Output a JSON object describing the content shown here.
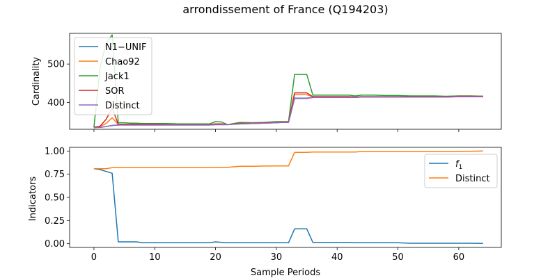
{
  "chart_data": {
    "title": "arrondissement of France (Q194203)",
    "xlabel": "Sample Periods",
    "x_ticks": [
      0,
      10,
      20,
      30,
      40,
      50,
      60
    ],
    "xlim": [
      -4,
      67
    ],
    "top": {
      "type": "line",
      "ylabel": "Cardinality",
      "ylim": [
        330,
        580
      ],
      "y_ticks": [
        400,
        500
      ],
      "legend_position": "upper-left",
      "series": [
        {
          "name": "N1−UNIF",
          "color": "#1f77b4",
          "x": [
            0,
            1,
            2,
            3,
            4,
            5,
            6,
            7,
            8,
            9,
            10,
            12,
            14,
            16,
            18,
            19,
            20,
            21,
            22,
            23,
            24,
            26,
            28,
            30,
            31,
            32,
            33,
            34,
            35,
            36,
            38,
            40,
            42,
            43,
            44,
            46,
            48,
            50,
            52,
            54,
            56,
            58,
            60,
            62,
            64
          ],
          "values": [
            335,
            335,
            337,
            340,
            341,
            341,
            341,
            341,
            341,
            341,
            341,
            341,
            341,
            341,
            341,
            341,
            342,
            342,
            342,
            343,
            344,
            345,
            346,
            347,
            348,
            348,
            411,
            411,
            411,
            413,
            413,
            413,
            413,
            413,
            414,
            414,
            414,
            414,
            414,
            414,
            414,
            414,
            415,
            415,
            415
          ]
        },
        {
          "name": "Chao92",
          "color": "#ff7f0e",
          "x": [
            0,
            1,
            2,
            3,
            4,
            5,
            6,
            7,
            8,
            9,
            10,
            12,
            14,
            16,
            18,
            19,
            20,
            21,
            22,
            23,
            24,
            26,
            28,
            30,
            31,
            32,
            33,
            34,
            35,
            36,
            38,
            40,
            42,
            43,
            44,
            46,
            48,
            50,
            52,
            54,
            56,
            58,
            60,
            62,
            64
          ],
          "values": [
            336,
            337,
            345,
            360,
            342,
            342,
            342,
            342,
            342,
            342,
            342,
            342,
            342,
            342,
            342,
            342,
            344,
            344,
            342,
            344,
            345,
            346,
            347,
            348,
            349,
            349,
            420,
            420,
            420,
            415,
            415,
            415,
            415,
            414,
            415,
            415,
            415,
            415,
            415,
            415,
            415,
            415,
            416,
            416,
            416
          ]
        },
        {
          "name": "Jack1",
          "color": "#2ca02c",
          "x": [
            0,
            1,
            2,
            3,
            4,
            5,
            6,
            7,
            8,
            9,
            10,
            12,
            14,
            16,
            18,
            19,
            20,
            21,
            22,
            23,
            24,
            26,
            28,
            30,
            31,
            32,
            33,
            34,
            35,
            36,
            38,
            40,
            42,
            43,
            44,
            46,
            48,
            50,
            52,
            54,
            56,
            58,
            60,
            62,
            64
          ],
          "values": [
            335,
            490,
            555,
            576,
            347,
            347,
            346,
            346,
            345,
            345,
            345,
            345,
            344,
            344,
            344,
            344,
            350,
            349,
            342,
            345,
            348,
            347,
            348,
            350,
            350,
            350,
            473,
            473,
            473,
            419,
            419,
            419,
            419,
            417,
            419,
            419,
            418,
            418,
            417,
            417,
            417,
            416,
            417,
            417,
            416
          ]
        },
        {
          "name": "SOR",
          "color": "#d62728",
          "x": [
            0,
            1,
            2,
            3,
            4,
            5,
            6,
            7,
            8,
            9,
            10,
            12,
            14,
            16,
            18,
            19,
            20,
            21,
            22,
            23,
            24,
            26,
            28,
            30,
            31,
            32,
            33,
            34,
            35,
            36,
            38,
            40,
            42,
            43,
            44,
            46,
            48,
            50,
            52,
            54,
            56,
            58,
            60,
            62,
            64
          ],
          "values": [
            335,
            338,
            356,
            385,
            343,
            343,
            343,
            343,
            343,
            343,
            343,
            342,
            342,
            342,
            342,
            342,
            344,
            344,
            342,
            344,
            345,
            346,
            347,
            348,
            349,
            349,
            425,
            425,
            425,
            415,
            415,
            415,
            415,
            414,
            415,
            415,
            415,
            415,
            415,
            415,
            415,
            415,
            416,
            416,
            416
          ]
        },
        {
          "name": "Distinct",
          "color": "#9467bd",
          "x": [
            0,
            1,
            2,
            3,
            4,
            5,
            6,
            7,
            8,
            9,
            10,
            12,
            14,
            16,
            18,
            19,
            20,
            21,
            22,
            23,
            24,
            26,
            28,
            30,
            31,
            32,
            33,
            34,
            35,
            36,
            38,
            40,
            42,
            43,
            44,
            46,
            48,
            50,
            52,
            54,
            56,
            58,
            60,
            62,
            64
          ],
          "values": [
            334,
            335,
            337,
            340,
            341,
            341,
            341,
            341,
            341,
            341,
            341,
            341,
            341,
            341,
            341,
            341,
            342,
            342,
            342,
            343,
            344,
            345,
            346,
            347,
            348,
            348,
            410,
            410,
            410,
            413,
            413,
            413,
            413,
            413,
            414,
            414,
            414,
            414,
            414,
            414,
            414,
            414,
            415,
            415,
            415
          ]
        }
      ]
    },
    "bottom": {
      "type": "line",
      "ylabel": "Indicators",
      "ylim": [
        -0.04,
        1.04
      ],
      "y_ticks": [
        "0.00",
        "0.25",
        "0.50",
        "0.75",
        "1.00"
      ],
      "legend_position": "upper-right",
      "series": [
        {
          "name": "f₁",
          "label_base": "f",
          "label_sub": "1",
          "color": "#1f77b4",
          "x": [
            0,
            1,
            2,
            3,
            4,
            5,
            6,
            7,
            8,
            9,
            10,
            12,
            14,
            16,
            18,
            19,
            20,
            21,
            22,
            23,
            24,
            26,
            28,
            30,
            31,
            32,
            33,
            34,
            35,
            36,
            38,
            40,
            42,
            43,
            44,
            46,
            48,
            50,
            52,
            54,
            56,
            58,
            60,
            62,
            64
          ],
          "values": [
            0.81,
            0.8,
            0.78,
            0.76,
            0.02,
            0.02,
            0.02,
            0.02,
            0.01,
            0.01,
            0.01,
            0.01,
            0.01,
            0.01,
            0.01,
            0.01,
            0.02,
            0.015,
            0.01,
            0.01,
            0.01,
            0.01,
            0.01,
            0.01,
            0.01,
            0.01,
            0.16,
            0.16,
            0.16,
            0.015,
            0.015,
            0.015,
            0.015,
            0.01,
            0.01,
            0.01,
            0.01,
            0.01,
            0.005,
            0.005,
            0.005,
            0.005,
            0.005,
            0.005,
            0.003
          ]
        },
        {
          "name": "Distinct",
          "color": "#ff7f0e",
          "x": [
            0,
            1,
            2,
            3,
            4,
            5,
            6,
            7,
            8,
            9,
            10,
            12,
            14,
            16,
            18,
            19,
            20,
            21,
            22,
            23,
            24,
            26,
            28,
            30,
            31,
            32,
            33,
            34,
            35,
            36,
            38,
            40,
            42,
            43,
            44,
            46,
            48,
            50,
            52,
            54,
            56,
            58,
            60,
            62,
            64
          ],
          "values": [
            0.81,
            0.81,
            0.81,
            0.82,
            0.82,
            0.82,
            0.82,
            0.82,
            0.82,
            0.82,
            0.82,
            0.82,
            0.82,
            0.82,
            0.82,
            0.82,
            0.825,
            0.825,
            0.825,
            0.83,
            0.835,
            0.835,
            0.838,
            0.84,
            0.84,
            0.84,
            0.985,
            0.985,
            0.985,
            0.99,
            0.99,
            0.99,
            0.99,
            0.99,
            0.995,
            0.995,
            0.995,
            0.995,
            0.995,
            0.995,
            0.995,
            0.995,
            0.997,
            0.998,
            1.0
          ]
        }
      ]
    }
  }
}
